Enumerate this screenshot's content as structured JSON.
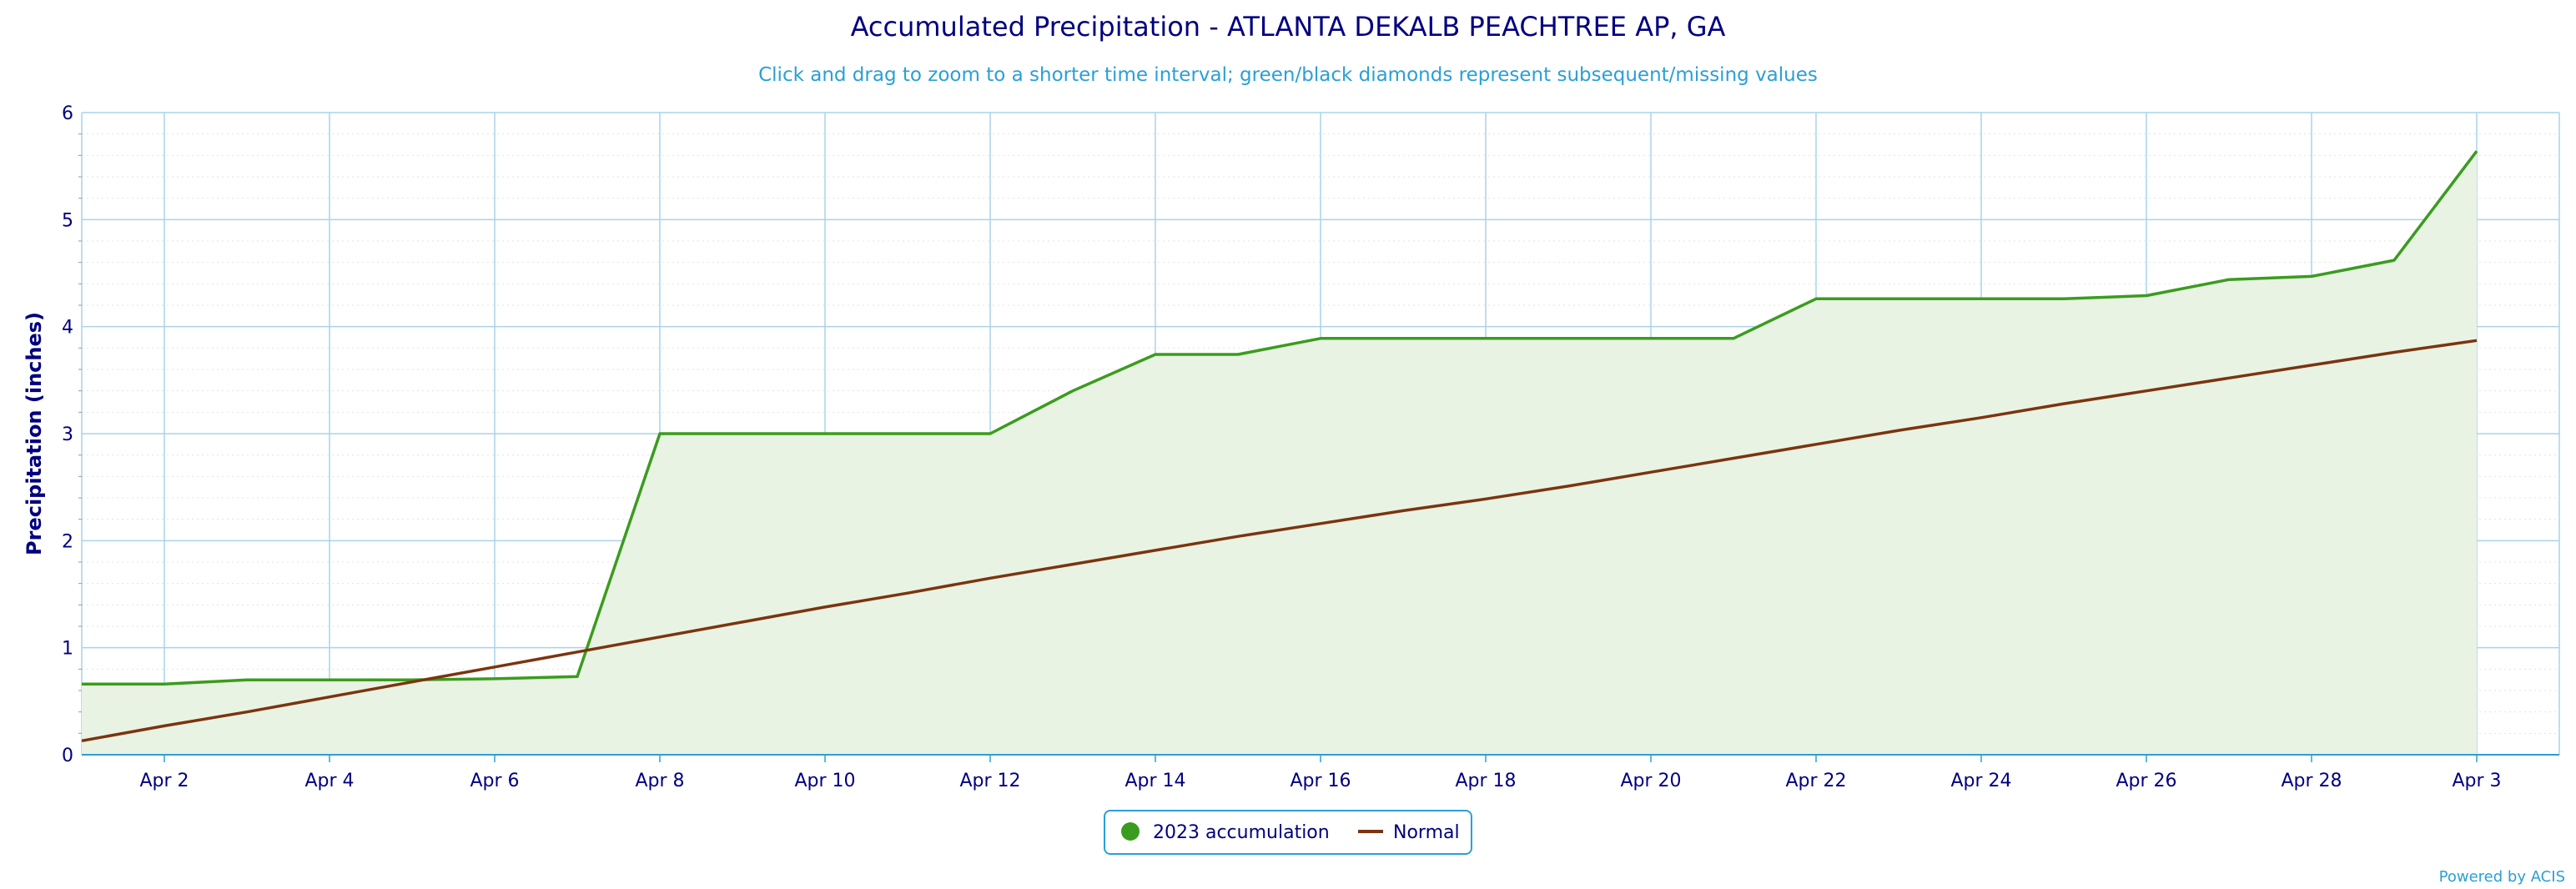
{
  "chart_data": {
    "type": "area",
    "title": "Accumulated Precipitation - ATLANTA DEKALB PEACHTREE AP, GA",
    "subtitle": "Click and drag to zoom to a shorter time interval; green/black diamonds represent subsequent/missing values",
    "ylabel": "Precipitation (inches)",
    "xlabel": "",
    "ylim": [
      0,
      6
    ],
    "xlim": [
      1,
      31
    ],
    "yticks": [
      "0",
      "1",
      "2",
      "3",
      "4",
      "5",
      "6"
    ],
    "xtick_days": [
      2,
      4,
      6,
      8,
      10,
      12,
      14,
      16,
      18,
      20,
      22,
      24,
      26,
      28,
      30
    ],
    "xtick_labels": [
      "Apr 2",
      "Apr 4",
      "Apr 6",
      "Apr 8",
      "Apr 10",
      "Apr 12",
      "Apr 14",
      "Apr 16",
      "Apr 18",
      "Apr 20",
      "Apr 22",
      "Apr 24",
      "Apr 26",
      "Apr 28",
      "Apr 3"
    ],
    "grid": true,
    "legend_position": "bottom-center",
    "series": [
      {
        "name": "2023 accumulation",
        "color": "#3a9c1e",
        "fill": "#e9f3e3",
        "style": "area",
        "x": [
          1,
          2,
          3,
          4,
          5,
          6,
          7,
          8,
          9,
          10,
          11,
          12,
          13,
          14,
          15,
          16,
          17,
          18,
          19,
          20,
          21,
          22,
          23,
          24,
          25,
          26,
          27,
          28,
          29,
          30
        ],
        "values": [
          0.66,
          0.66,
          0.7,
          0.7,
          0.7,
          0.71,
          0.73,
          3.0,
          3.0,
          3.0,
          3.0,
          3.0,
          3.4,
          3.74,
          3.74,
          3.89,
          3.89,
          3.89,
          3.89,
          3.89,
          3.89,
          4.26,
          4.26,
          4.26,
          4.26,
          4.29,
          4.44,
          4.47,
          4.62,
          5.64
        ]
      },
      {
        "name": "Normal",
        "color": "#7b3410",
        "style": "line",
        "x": [
          1,
          2,
          3,
          4,
          5,
          6,
          7,
          8,
          9,
          10,
          11,
          12,
          13,
          14,
          15,
          16,
          17,
          18,
          19,
          20,
          21,
          22,
          23,
          24,
          25,
          26,
          27,
          28,
          29,
          30
        ],
        "values": [
          0.13,
          0.27,
          0.4,
          0.54,
          0.68,
          0.82,
          0.96,
          1.1,
          1.24,
          1.38,
          1.51,
          1.65,
          1.78,
          1.91,
          2.04,
          2.16,
          2.28,
          2.39,
          2.51,
          2.64,
          2.77,
          2.9,
          3.03,
          3.15,
          3.28,
          3.4,
          3.52,
          3.64,
          3.76,
          3.87
        ]
      }
    ]
  },
  "credit": "Powered by ACIS"
}
